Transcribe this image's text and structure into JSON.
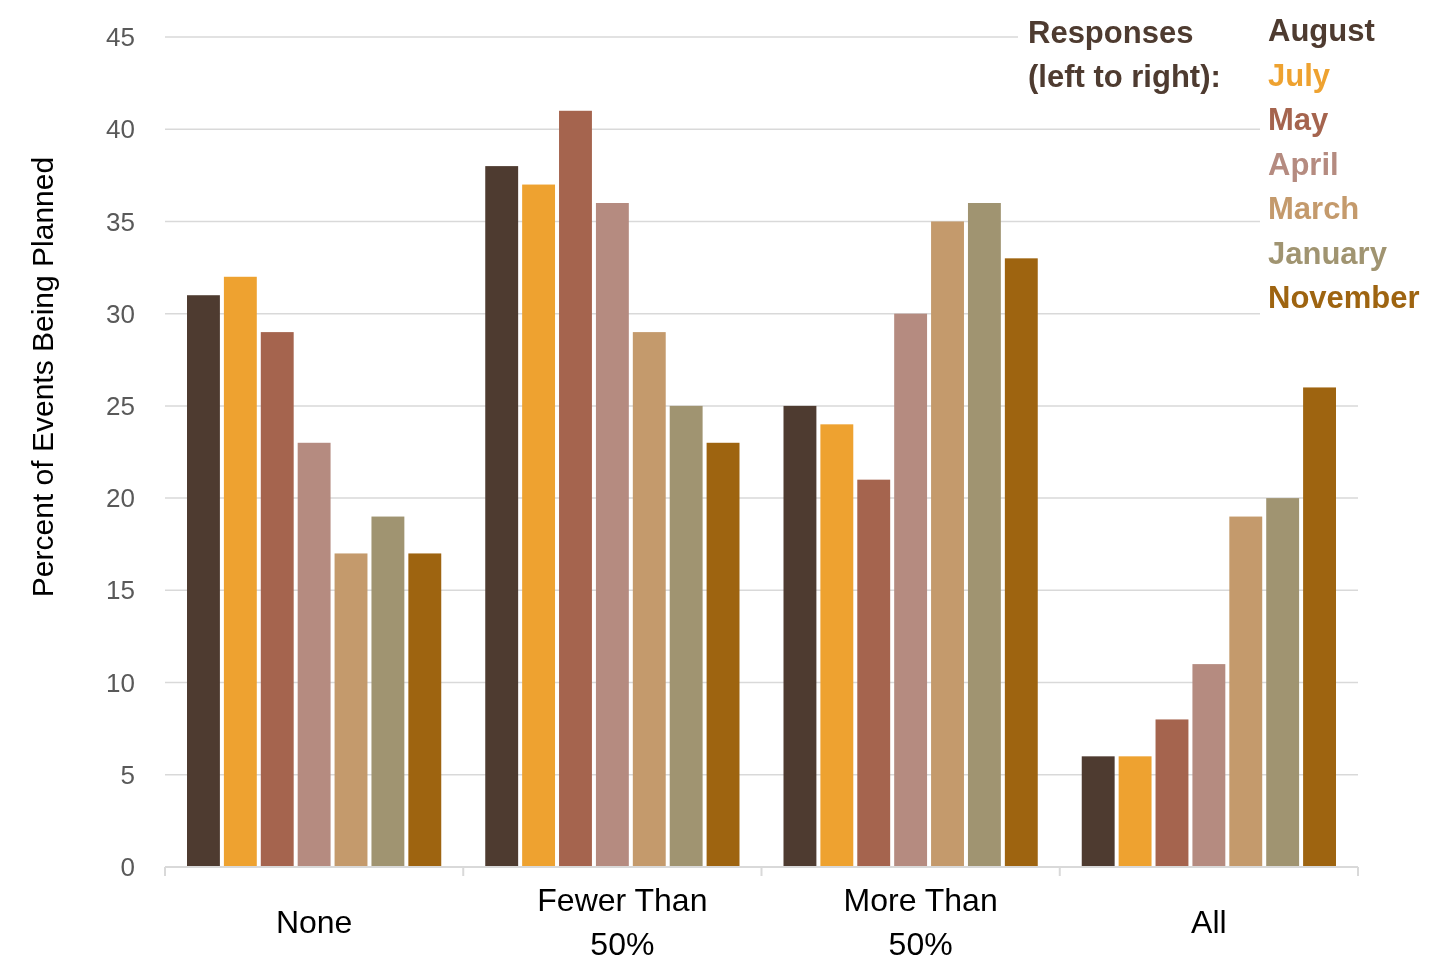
{
  "chart_data": {
    "type": "bar",
    "ylabel": "Percent of Events Being Planned",
    "legend_title": "Responses\n(left to right):",
    "categories": [
      "None",
      "Fewer Than 50%",
      "More Than 50%",
      "All"
    ],
    "series": [
      {
        "name": "August",
        "color": "#4e3b30",
        "values": [
          31,
          38,
          25,
          6
        ]
      },
      {
        "name": "July",
        "color": "#eea230",
        "values": [
          32,
          37,
          24,
          6
        ]
      },
      {
        "name": "May",
        "color": "#a5644e",
        "values": [
          29,
          41,
          21,
          8
        ]
      },
      {
        "name": "April",
        "color": "#b58b80",
        "values": [
          23,
          36,
          30,
          11
        ]
      },
      {
        "name": "March",
        "color": "#c49a6c",
        "values": [
          17,
          29,
          35,
          19
        ]
      },
      {
        "name": "January",
        "color": "#a09471",
        "values": [
          19,
          25,
          36,
          20
        ]
      },
      {
        "name": "November",
        "color": "#9e6410",
        "values": [
          17,
          23,
          33,
          26
        ]
      }
    ],
    "ylim": [
      0,
      45
    ],
    "yticks": [
      0,
      5,
      10,
      15,
      20,
      25,
      30,
      35,
      40,
      45
    ],
    "grid": "y",
    "legend": "top right"
  }
}
